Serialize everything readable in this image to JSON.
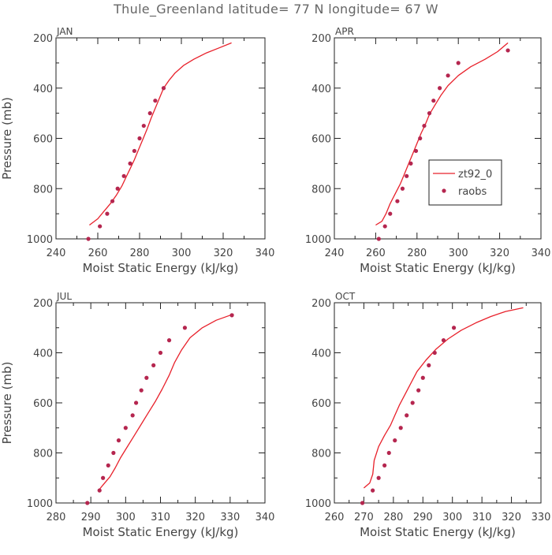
{
  "figure": {
    "title": "Thule_Greenland  latitude= 77 N longitude= 67 W"
  },
  "chart_data": [
    {
      "type": "line",
      "panel_label": "JAN",
      "xlabel": "Moist Static Energy (kJ/kg)",
      "ylabel": "Pressure (mb)",
      "xlim": [
        240,
        340
      ],
      "ylim": [
        1000,
        200
      ],
      "xticks": [
        240,
        260,
        280,
        300,
        320,
        340
      ],
      "yticks": [
        200,
        400,
        600,
        800,
        1000
      ],
      "series": [
        {
          "kind": "line",
          "color": "#e8212b",
          "x": [
            256,
            260,
            263,
            266,
            269,
            271.5,
            273.5,
            275.5,
            277.5,
            279.5,
            281.5,
            283.5,
            285.5,
            287.5,
            289.5,
            291.5,
            294,
            297,
            301,
            306,
            312,
            318,
            324
          ],
          "y": [
            945,
            920,
            890,
            860,
            825,
            790,
            755,
            720,
            685,
            645,
            605,
            565,
            520,
            480,
            440,
            400,
            370,
            340,
            310,
            285,
            260,
            240,
            220
          ]
        },
        {
          "kind": "points",
          "color": "#b5264f",
          "x": [
            255.5,
            261,
            264.5,
            267,
            269.5,
            272.5,
            275.5,
            277.5,
            280,
            282,
            285,
            287.5,
            291.5
          ],
          "y": [
            1000,
            950,
            900,
            850,
            800,
            750,
            700,
            650,
            600,
            550,
            500,
            450,
            400
          ]
        }
      ]
    },
    {
      "type": "line",
      "panel_label": "APR",
      "xlabel": "Moist Static Energy (kJ/kg)",
      "ylabel": "",
      "xlim": [
        240,
        340
      ],
      "ylim": [
        1000,
        200
      ],
      "xticks": [
        240,
        260,
        280,
        300,
        320,
        340
      ],
      "yticks": [
        200,
        400,
        600,
        800,
        1000
      ],
      "legend": {
        "position": "right-middle",
        "entries": [
          "zt92_0",
          "raobs"
        ]
      },
      "series": [
        {
          "name": "zt92_0",
          "kind": "line",
          "color": "#e8212b",
          "x": [
            260,
            263,
            265,
            267,
            269.5,
            272,
            274,
            276,
            278,
            280,
            282,
            284,
            286,
            288.5,
            291.5,
            295,
            300,
            306,
            313,
            319,
            324
          ],
          "y": [
            945,
            930,
            900,
            860,
            820,
            780,
            740,
            700,
            660,
            620,
            580,
            545,
            505,
            470,
            430,
            390,
            350,
            315,
            285,
            255,
            220
          ]
        },
        {
          "name": "raobs",
          "kind": "points",
          "color": "#b5264f",
          "x": [
            261.5,
            264.5,
            267,
            270.5,
            273,
            275,
            277,
            279.5,
            281.5,
            283.5,
            286,
            288,
            291,
            295,
            300,
            324
          ],
          "y": [
            1000,
            950,
            900,
            850,
            800,
            750,
            700,
            650,
            600,
            550,
            500,
            450,
            400,
            350,
            300,
            250
          ]
        }
      ]
    },
    {
      "type": "line",
      "panel_label": "JUL",
      "xlabel": "Moist Static Energy (kJ/kg)",
      "ylabel": "Pressure (mb)",
      "xlim": [
        280,
        340
      ],
      "ylim": [
        1000,
        200
      ],
      "xticks": [
        280,
        290,
        300,
        310,
        320,
        330,
        340
      ],
      "yticks": [
        200,
        400,
        600,
        800,
        1000
      ],
      "series": [
        {
          "kind": "line",
          "color": "#e8212b",
          "x": [
            292.5,
            294,
            295.5,
            297,
            298.5,
            300.5,
            302.5,
            304.5,
            306.5,
            308.5,
            310.5,
            312.5,
            314,
            316,
            318.5,
            322,
            326,
            331
          ],
          "y": [
            945,
            920,
            895,
            860,
            820,
            775,
            730,
            685,
            640,
            595,
            545,
            490,
            440,
            390,
            340,
            300,
            270,
            245
          ]
        },
        {
          "kind": "points",
          "color": "#b5264f",
          "x": [
            289,
            292.5,
            293.5,
            295,
            296.5,
            298,
            300,
            302,
            303,
            304.5,
            306,
            308,
            310,
            312.5,
            317,
            330.5
          ],
          "y": [
            1000,
            950,
            900,
            850,
            800,
            750,
            700,
            650,
            600,
            550,
            500,
            450,
            400,
            350,
            300,
            250
          ]
        }
      ]
    },
    {
      "type": "line",
      "panel_label": "OCT",
      "xlabel": "Moist Static Energy (kJ/kg)",
      "ylabel": "",
      "xlim": [
        260,
        330
      ],
      "ylim": [
        1000,
        200
      ],
      "xticks": [
        260,
        270,
        280,
        290,
        300,
        310,
        320,
        330
      ],
      "yticks": [
        200,
        400,
        600,
        800,
        1000
      ],
      "series": [
        {
          "kind": "line",
          "color": "#e8212b",
          "x": [
            270,
            272,
            273,
            273.5,
            275,
            277,
            279,
            280.5,
            282,
            284,
            286,
            288,
            291,
            294.5,
            298.5,
            303,
            308,
            313,
            318,
            324
          ],
          "y": [
            940,
            920,
            885,
            830,
            775,
            730,
            690,
            650,
            610,
            565,
            520,
            475,
            430,
            385,
            345,
            310,
            280,
            255,
            235,
            220
          ]
        },
        {
          "kind": "points",
          "color": "#b5264f",
          "x": [
            269.5,
            273,
            275,
            277,
            278.5,
            280.5,
            282.5,
            284.5,
            286.5,
            288.5,
            290,
            292,
            294,
            297,
            300.5
          ],
          "y": [
            1000,
            950,
            900,
            850,
            800,
            750,
            700,
            650,
            600,
            550,
            500,
            450,
            400,
            350,
            300
          ]
        }
      ]
    }
  ]
}
